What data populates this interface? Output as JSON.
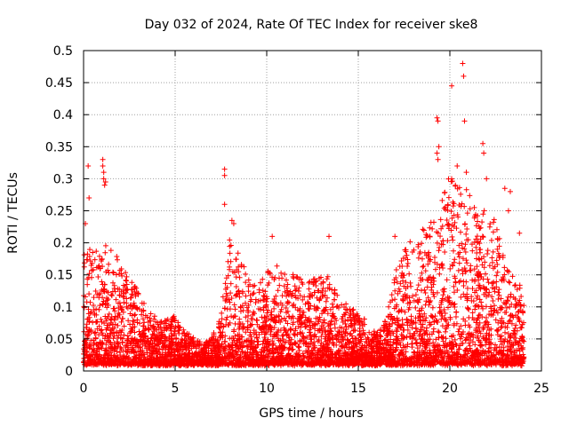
{
  "chart_data": {
    "type": "scatter",
    "title": "Day 032 of 2024, Rate Of TEC Index for receiver ske8",
    "xlabel": "GPS time / hours",
    "ylabel": "ROTI / TECUs",
    "xlim": [
      0,
      25
    ],
    "ylim": [
      0,
      0.5
    ],
    "grid": true,
    "legend": "none",
    "marker": "+",
    "series_color": "#ff0000",
    "xticks": [
      0,
      5,
      10,
      15,
      20,
      25
    ],
    "xtick_labels": [
      "0",
      "5",
      "10",
      "15",
      "20",
      "25"
    ],
    "yticks": [
      0,
      0.05,
      0.1,
      0.15,
      0.2,
      0.25,
      0.3,
      0.35,
      0.4,
      0.45,
      0.5
    ],
    "ytick_labels": [
      "0",
      "0.05",
      "0.1",
      "0.15",
      "0.2",
      "0.25",
      "0.3",
      "0.35",
      "0.4",
      "0.45",
      "0.5"
    ],
    "envelope": {
      "description_x_hours": [
        0,
        0.5,
        1,
        1.5,
        2,
        2.5,
        3,
        3.5,
        4,
        4.5,
        5,
        5.5,
        6,
        6.5,
        7,
        7.5,
        8,
        8.5,
        9,
        9.5,
        10,
        10.5,
        11,
        11.5,
        12,
        12.5,
        13,
        13.5,
        14,
        14.5,
        15,
        15.5,
        16,
        16.5,
        17,
        17.5,
        18,
        18.5,
        19,
        19.5,
        20,
        20.5,
        21,
        21.5,
        22,
        22.5,
        23,
        23.5,
        24
      ],
      "typical_max_roti": [
        0.18,
        0.19,
        0.19,
        0.19,
        0.17,
        0.14,
        0.12,
        0.09,
        0.08,
        0.08,
        0.08,
        0.06,
        0.05,
        0.04,
        0.05,
        0.08,
        0.22,
        0.18,
        0.14,
        0.13,
        0.15,
        0.16,
        0.16,
        0.15,
        0.14,
        0.14,
        0.15,
        0.14,
        0.11,
        0.1,
        0.09,
        0.07,
        0.06,
        0.08,
        0.15,
        0.19,
        0.2,
        0.22,
        0.24,
        0.28,
        0.3,
        0.29,
        0.28,
        0.25,
        0.25,
        0.23,
        0.18,
        0.14,
        0.13
      ]
    },
    "notable_points": [
      {
        "x": 0.1,
        "y": 0.23
      },
      {
        "x": 0.25,
        "y": 0.32
      },
      {
        "x": 0.3,
        "y": 0.27
      },
      {
        "x": 1.05,
        "y": 0.33
      },
      {
        "x": 1.05,
        "y": 0.32
      },
      {
        "x": 1.1,
        "y": 0.31
      },
      {
        "x": 1.1,
        "y": 0.3
      },
      {
        "x": 1.15,
        "y": 0.29
      },
      {
        "x": 1.2,
        "y": 0.295
      },
      {
        "x": 7.7,
        "y": 0.315
      },
      {
        "x": 7.7,
        "y": 0.305
      },
      {
        "x": 7.7,
        "y": 0.26
      },
      {
        "x": 8.1,
        "y": 0.235
      },
      {
        "x": 8.2,
        "y": 0.23
      },
      {
        "x": 10.3,
        "y": 0.21
      },
      {
        "x": 13.4,
        "y": 0.21
      },
      {
        "x": 17.0,
        "y": 0.21
      },
      {
        "x": 19.3,
        "y": 0.395
      },
      {
        "x": 19.35,
        "y": 0.39
      },
      {
        "x": 19.4,
        "y": 0.35
      },
      {
        "x": 19.3,
        "y": 0.34
      },
      {
        "x": 19.35,
        "y": 0.33
      },
      {
        "x": 20.1,
        "y": 0.445
      },
      {
        "x": 20.7,
        "y": 0.48
      },
      {
        "x": 20.75,
        "y": 0.46
      },
      {
        "x": 20.8,
        "y": 0.39
      },
      {
        "x": 20.4,
        "y": 0.32
      },
      {
        "x": 20.9,
        "y": 0.31
      },
      {
        "x": 21.8,
        "y": 0.355
      },
      {
        "x": 21.85,
        "y": 0.34
      },
      {
        "x": 22.0,
        "y": 0.3
      },
      {
        "x": 23.0,
        "y": 0.285
      },
      {
        "x": 23.3,
        "y": 0.28
      },
      {
        "x": 23.2,
        "y": 0.25
      },
      {
        "x": 23.8,
        "y": 0.215
      }
    ]
  }
}
